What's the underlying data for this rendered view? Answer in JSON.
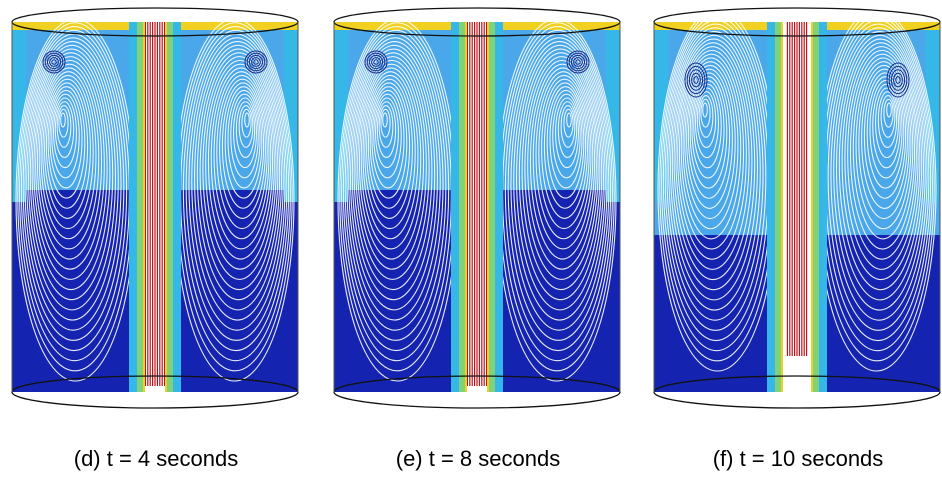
{
  "panels": [
    {
      "caption": "(d) t = 4 seconds"
    },
    {
      "caption": "(e) t = 8 seconds"
    },
    {
      "caption": "(f) t = 10 seconds"
    }
  ],
  "colors": {
    "core": "#c0121a",
    "hot": "#f0d020",
    "warm": "#7fd27a",
    "mid": "#35b8e8",
    "light": "#4aa7ea",
    "deep": "#1524b0",
    "rim": "#111111"
  }
}
